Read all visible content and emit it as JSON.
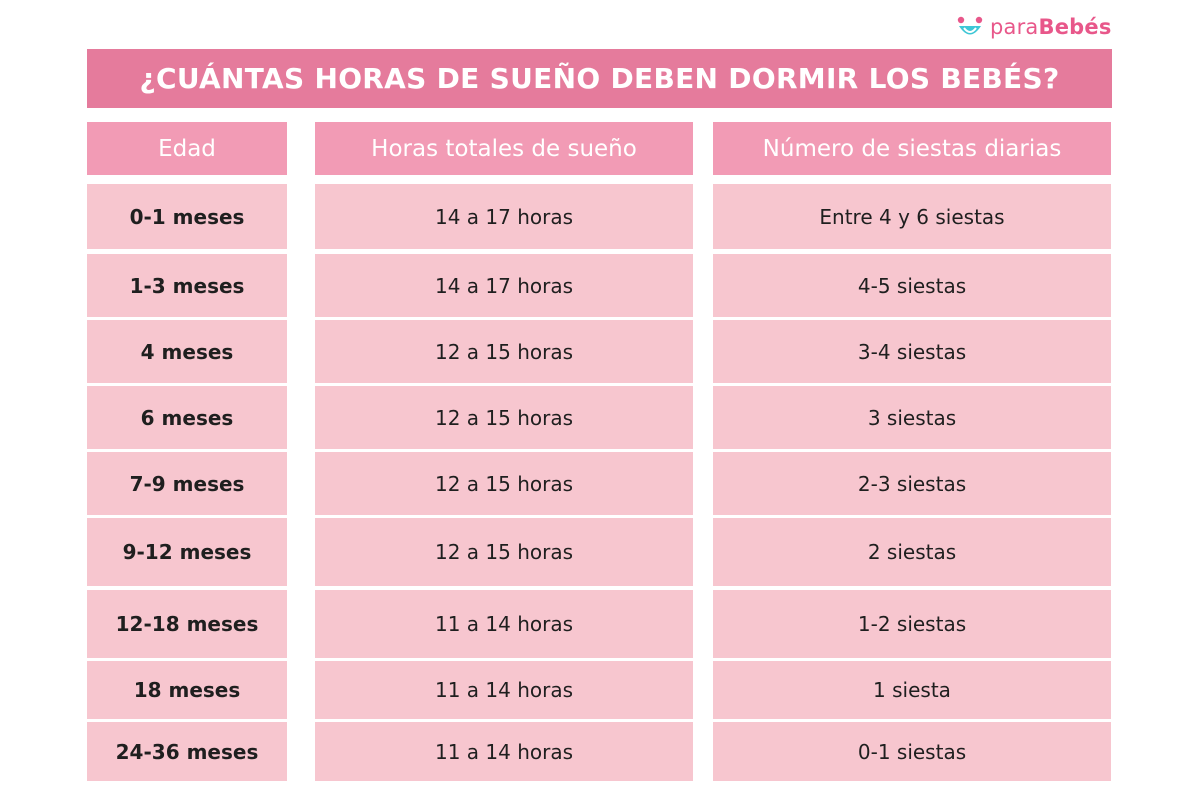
{
  "brand": {
    "prefix": "para",
    "name": "Bebés",
    "icon": "smiley-logo-icon",
    "color": "#e8578a"
  },
  "title": "¿CUÁNTAS HORAS DE SUEÑO DEBEN DORMIR LOS BEBÉS?",
  "headers": {
    "edad": "Edad",
    "horas": "Horas totales de sueño",
    "siestas": "Número de siestas diarias"
  },
  "rows": [
    {
      "edad": "0-1 meses",
      "horas": "14 a 17 horas",
      "siestas": "Entre 4 y 6 siestas"
    },
    {
      "edad": "1-3 meses",
      "horas": "14 a 17 horas",
      "siestas": "4-5 siestas"
    },
    {
      "edad": "4 meses",
      "horas": "12 a 15 horas",
      "siestas": "3-4 siestas"
    },
    {
      "edad": "6 meses",
      "horas": "12 a 15 horas",
      "siestas": "3 siestas"
    },
    {
      "edad": "7-9 meses",
      "horas": "12 a 15 horas",
      "siestas": "2-3 siestas"
    },
    {
      "edad": "9-12 meses",
      "horas": "12 a 15 horas",
      "siestas": "2 siestas"
    },
    {
      "edad": "12-18 meses",
      "horas": "11 a 14 horas",
      "siestas": "1-2 siestas"
    },
    {
      "edad": "18 meses",
      "horas": "11 a 14 horas",
      "siestas": "1 siesta"
    },
    {
      "edad": "24-36 meses",
      "horas": "11 a 14 horas",
      "siestas": "0-1 siestas"
    }
  ],
  "colors": {
    "banner": "#e57b9c",
    "header_cell": "#f29bb5",
    "body_cell": "#f7c6cf"
  }
}
